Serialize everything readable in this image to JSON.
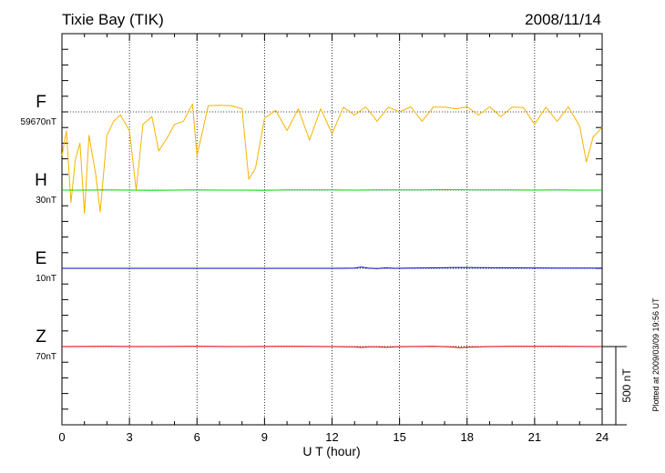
{
  "chart_data": {
    "type": "line",
    "title_left": "Tixie Bay (TIK)",
    "title_right": "2008/11/14",
    "xlabel": "U T (hour)",
    "x_range": [
      0,
      24
    ],
    "x_ticks": [
      "0",
      "3",
      "6",
      "9",
      "12",
      "15",
      "18",
      "21",
      "24"
    ],
    "grid": "dotted vertical at every 3 hours",
    "scale_bar": {
      "label": "500 nT",
      "value_nT": 500
    },
    "plotted_note": "Plotted at 2009/03/09 19:56 UT",
    "series": [
      {
        "name": "F",
        "baseline_label": "59670nT",
        "color": "#f5b400",
        "line_color": "#f5b400",
        "baseline_offset_nT": 0,
        "x": [
          0,
          0.2,
          0.4,
          0.6,
          0.8,
          1.0,
          1.2,
          1.5,
          1.7,
          2.0,
          2.3,
          2.6,
          3.0,
          3.3,
          3.6,
          4.0,
          4.3,
          4.7,
          5.0,
          5.4,
          5.8,
          6.0,
          6.5,
          7.0,
          7.5,
          8.0,
          8.3,
          8.6,
          9.0,
          9.5,
          10.0,
          10.5,
          11.0,
          11.5,
          12.0,
          12.5,
          13.0,
          13.5,
          14.0,
          14.5,
          15.0,
          15.5,
          16.0,
          16.5,
          17.0,
          17.5,
          18.0,
          18.5,
          19.0,
          19.5,
          20.0,
          20.5,
          21.0,
          21.5,
          22.0,
          22.5,
          23.0,
          23.3,
          23.6,
          24.0
        ],
        "values": [
          -280,
          -120,
          -580,
          -300,
          -200,
          -650,
          -150,
          -400,
          -640,
          -150,
          -60,
          -20,
          -120,
          -500,
          -80,
          -30,
          -250,
          -160,
          -80,
          -60,
          50,
          -280,
          40,
          42,
          40,
          20,
          -430,
          -360,
          -40,
          10,
          -120,
          20,
          -180,
          20,
          -140,
          30,
          -20,
          32,
          -60,
          30,
          0,
          32,
          -60,
          30,
          30,
          20,
          32,
          -20,
          32,
          -30,
          30,
          28,
          -80,
          30,
          -60,
          32,
          -90,
          -320,
          -160,
          -100
        ]
      },
      {
        "name": "H",
        "baseline_label": "30nT",
        "color": "#00cc00",
        "line_color": "#00dd00",
        "baseline_offset_nT": 0,
        "x": [
          0,
          1,
          2,
          3,
          4,
          5,
          6,
          7,
          8,
          9,
          10,
          11,
          12,
          13,
          14,
          15,
          16,
          17,
          18,
          19,
          20,
          21,
          22,
          23,
          24
        ],
        "values": [
          0,
          0,
          1,
          0,
          -1,
          0,
          1,
          0,
          0,
          -1,
          1,
          2,
          1,
          0,
          1,
          2,
          1,
          3,
          2,
          1,
          1,
          0,
          1,
          0,
          0
        ]
      },
      {
        "name": "E",
        "baseline_label": "10nT",
        "color": "#0000cc",
        "line_color": "#0000cc",
        "baseline_offset_nT": 0,
        "x": [
          0,
          2,
          4,
          6,
          8,
          10,
          12,
          13.0,
          13.3,
          13.6,
          14.0,
          14.4,
          14.8,
          15.5,
          16.5,
          17.5,
          18.5,
          20,
          22,
          24
        ],
        "values": [
          0,
          0,
          0,
          0,
          0,
          0,
          0,
          1,
          8,
          1,
          -1,
          3,
          0,
          1,
          3,
          5,
          4,
          3,
          2,
          1
        ]
      },
      {
        "name": "Z",
        "baseline_label": "70nT",
        "color": "#dd0000",
        "line_color": "#dd0000",
        "baseline_offset_nT": 0,
        "x": [
          0,
          2,
          4,
          6,
          8,
          10,
          12,
          13.0,
          13.3,
          13.6,
          14.0,
          14.4,
          14.8,
          15.5,
          16.5,
          17.2,
          17.7,
          18.2,
          19,
          20,
          22,
          24
        ],
        "values": [
          0,
          1,
          0,
          1,
          0,
          1,
          0,
          -2,
          -6,
          -1,
          -2,
          -5,
          -1,
          0,
          1,
          -2,
          -7,
          -3,
          0,
          1,
          1,
          0
        ]
      }
    ]
  }
}
